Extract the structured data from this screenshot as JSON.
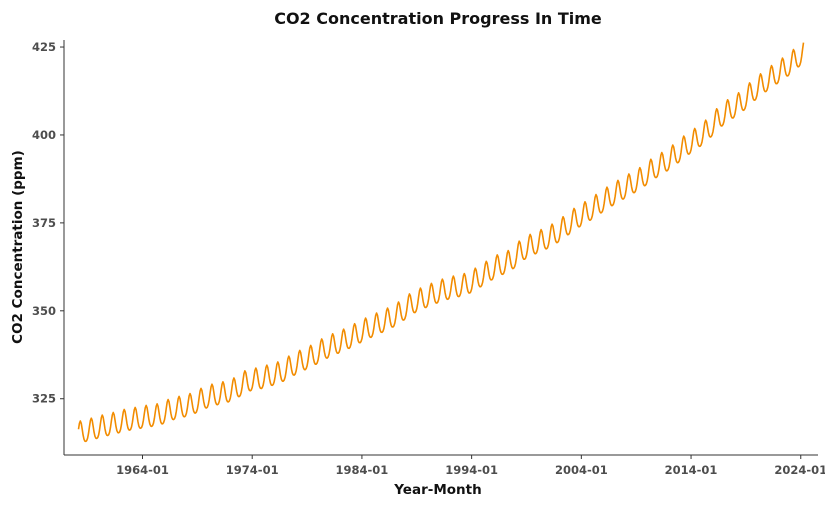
{
  "chart_data": {
    "type": "line",
    "title": "CO2 Concentration Progress In Time",
    "xlabel": "Year-Month",
    "ylabel": "CO2 Concentration (ppm)",
    "x_range": [
      "1958-03",
      "2024-04"
    ],
    "ylim": [
      309,
      427
    ],
    "x_ticks": [
      "1964-01",
      "1974-01",
      "1984-01",
      "1994-01",
      "2004-01",
      "2014-01",
      "2024-01"
    ],
    "y_ticks": [
      325,
      350,
      375,
      400,
      425
    ],
    "grid": false,
    "series": [
      {
        "color": "#f28c00",
        "sampling": "monthly",
        "start": "1958-03",
        "annual_means": [
          [
            "1958",
            315.2
          ],
          [
            "1959",
            316.0
          ],
          [
            "1960",
            316.9
          ],
          [
            "1961",
            317.6
          ],
          [
            "1962",
            318.5
          ],
          [
            "1963",
            319.0
          ],
          [
            "1964",
            319.6
          ],
          [
            "1965",
            320.0
          ],
          [
            "1966",
            321.4
          ],
          [
            "1967",
            322.2
          ],
          [
            "1968",
            323.0
          ],
          [
            "1969",
            324.6
          ],
          [
            "1970",
            325.7
          ],
          [
            "1971",
            326.3
          ],
          [
            "1972",
            327.5
          ],
          [
            "1973",
            329.7
          ],
          [
            "1974",
            330.2
          ],
          [
            "1975",
            331.1
          ],
          [
            "1976",
            332.0
          ],
          [
            "1977",
            333.8
          ],
          [
            "1978",
            335.4
          ],
          [
            "1979",
            336.8
          ],
          [
            "1980",
            338.7
          ],
          [
            "1981",
            340.1
          ],
          [
            "1982",
            341.4
          ],
          [
            "1983",
            343.0
          ],
          [
            "1984",
            344.6
          ],
          [
            "1985",
            346.0
          ],
          [
            "1986",
            347.4
          ],
          [
            "1987",
            349.2
          ],
          [
            "1988",
            351.6
          ],
          [
            "1989",
            353.1
          ],
          [
            "1990",
            354.4
          ],
          [
            "1991",
            355.6
          ],
          [
            "1992",
            356.4
          ],
          [
            "1993",
            357.1
          ],
          [
            "1994",
            358.8
          ],
          [
            "1995",
            360.8
          ],
          [
            "1996",
            362.6
          ],
          [
            "1997",
            363.7
          ],
          [
            "1998",
            366.7
          ],
          [
            "1999",
            368.4
          ],
          [
            "2000",
            369.7
          ],
          [
            "2001",
            371.3
          ],
          [
            "2002",
            373.5
          ],
          [
            "2003",
            375.9
          ],
          [
            "2004",
            377.7
          ],
          [
            "2005",
            379.8
          ],
          [
            "2006",
            381.9
          ],
          [
            "2007",
            383.8
          ],
          [
            "2008",
            385.6
          ],
          [
            "2009",
            387.4
          ],
          [
            "2010",
            389.9
          ],
          [
            "2011",
            391.7
          ],
          [
            "2012",
            393.9
          ],
          [
            "2013",
            396.5
          ],
          [
            "2014",
            398.6
          ],
          [
            "2015",
            401.0
          ],
          [
            "2016",
            404.4
          ],
          [
            "2017",
            406.8
          ],
          [
            "2018",
            408.7
          ],
          [
            "2019",
            411.7
          ],
          [
            "2020",
            414.2
          ],
          [
            "2021",
            416.5
          ],
          [
            "2022",
            418.6
          ],
          [
            "2023",
            421.1
          ],
          [
            "2024",
            424.0
          ]
        ],
        "seasonal_amplitude_ppm": 3.1
      }
    ]
  }
}
